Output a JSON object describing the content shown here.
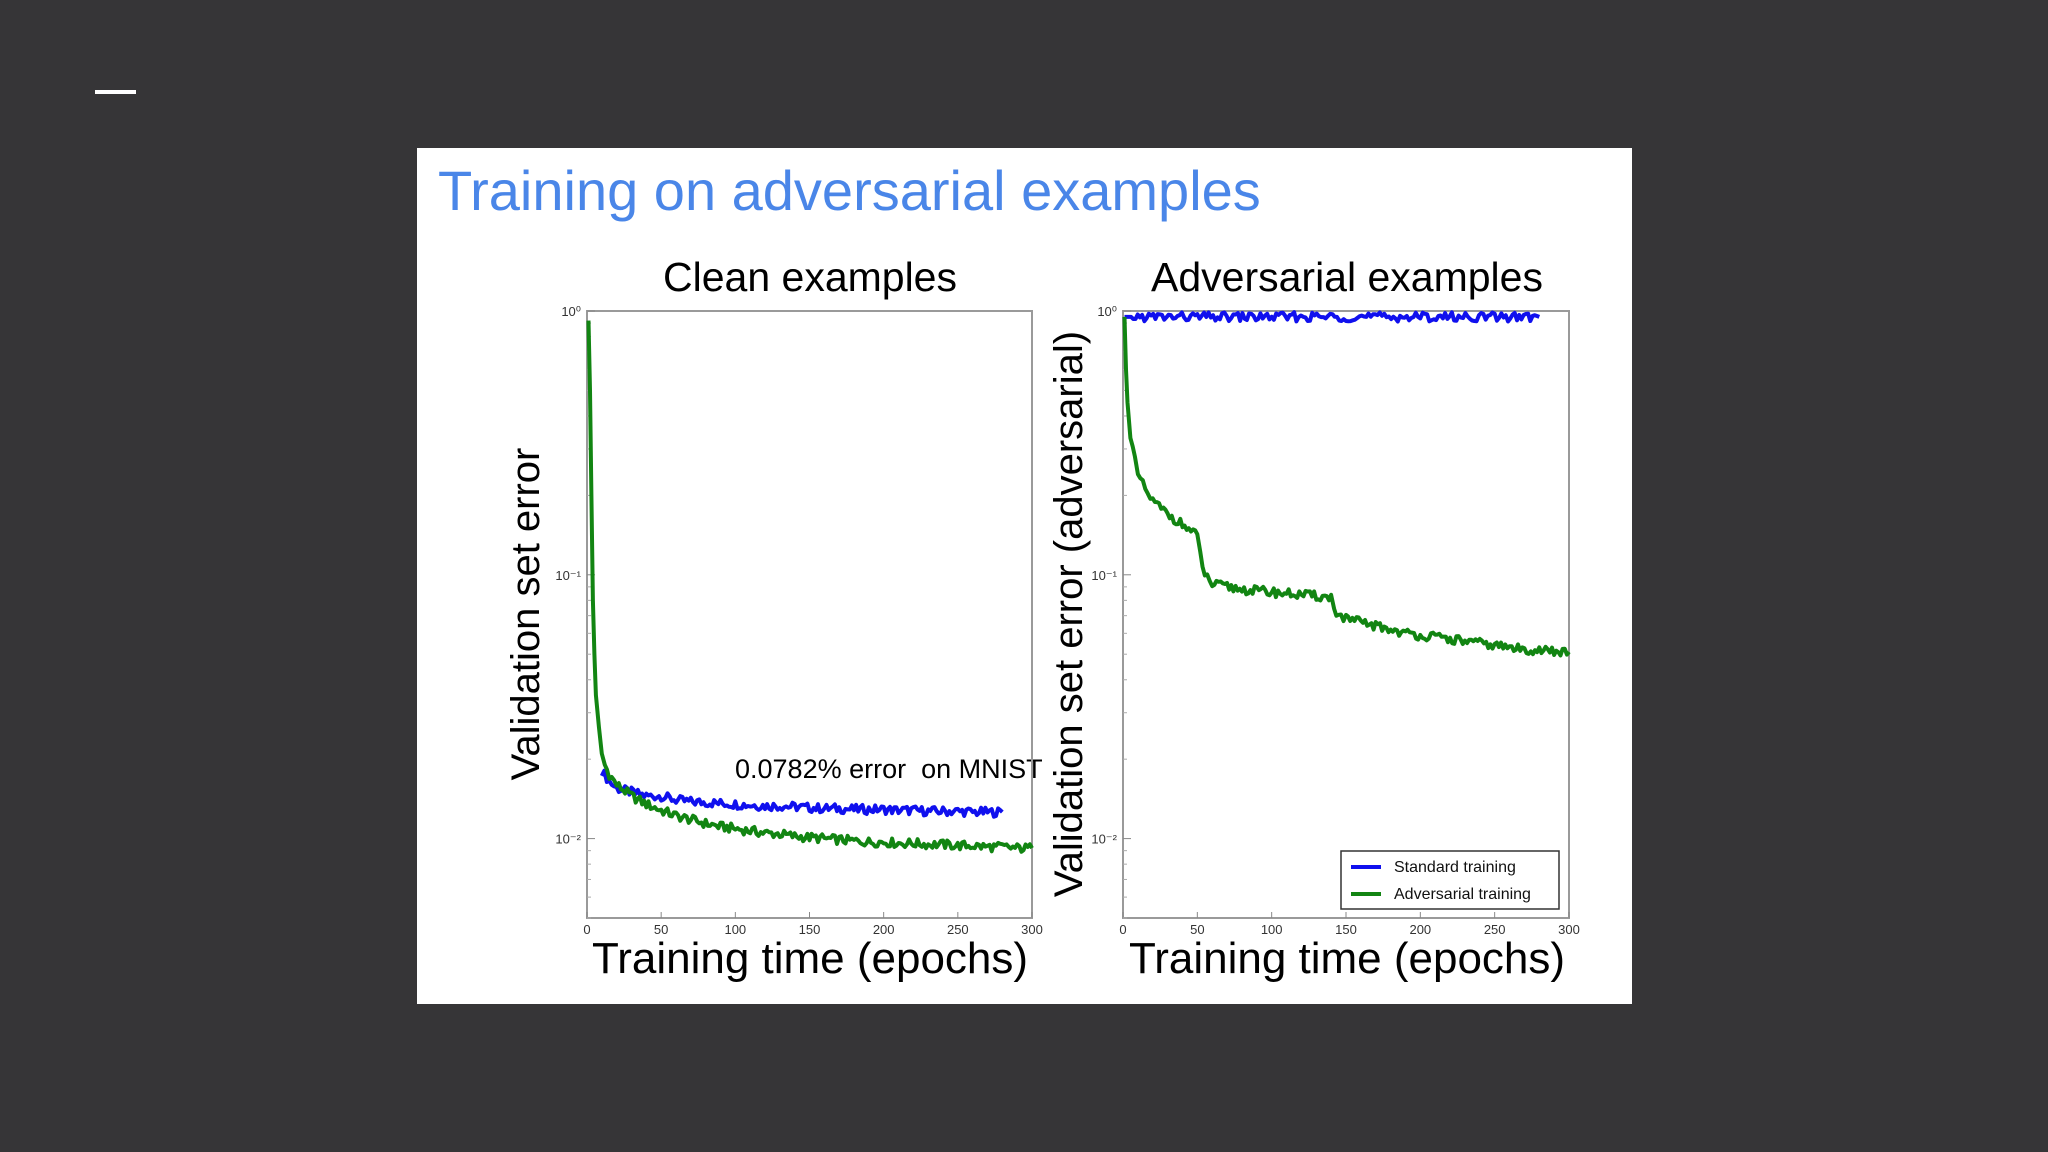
{
  "slide": {
    "title": "Training on adversarial examples",
    "annotation": "0.0782% error  on MNIST"
  },
  "colors": {
    "background": "#363537",
    "panel": "#ffffff",
    "title": "#4a86e8",
    "standard_training": "#1010ee",
    "adversarial_training": "#128512"
  },
  "chart_data": [
    {
      "type": "line",
      "title": "Clean examples",
      "xlabel": "Training time (epochs)",
      "ylabel": "Validation set error",
      "xscale": "linear",
      "yscale": "log",
      "xlim": [
        0,
        300
      ],
      "ylim": [
        0.005,
        1.0
      ],
      "xticks": [
        0,
        50,
        100,
        150,
        200,
        250,
        300
      ],
      "xtick_labels": [
        "0",
        "50",
        "100",
        "150",
        "200",
        "250",
        "300"
      ],
      "yticks": [
        1,
        0.1,
        0.01
      ],
      "ytick_labels": [
        "10⁰",
        "10⁻¹",
        "10⁻²"
      ],
      "grid": false,
      "series": [
        {
          "name": "Standard training",
          "x": [
            10,
            15,
            20,
            30,
            40,
            50,
            60,
            70,
            80,
            90,
            100,
            110,
            120,
            130,
            140,
            150,
            160,
            170,
            180,
            190,
            200,
            210,
            220,
            230,
            240,
            250,
            260,
            270,
            280
          ],
          "y": [
            0.018,
            0.0165,
            0.0155,
            0.015,
            0.0145,
            0.0145,
            0.014,
            0.0138,
            0.0137,
            0.0136,
            0.0135,
            0.0134,
            0.0133,
            0.0133,
            0.0132,
            0.0131,
            0.013,
            0.013,
            0.0129,
            0.0129,
            0.0129,
            0.0128,
            0.0128,
            0.0127,
            0.0127,
            0.0127,
            0.0126,
            0.0126,
            0.0126
          ]
        },
        {
          "name": "Adversarial training",
          "x": [
            1,
            2,
            3,
            4,
            5,
            6,
            8,
            10,
            12,
            15,
            20,
            30,
            40,
            50,
            60,
            70,
            80,
            90,
            100,
            110,
            120,
            130,
            140,
            150,
            160,
            170,
            180,
            190,
            200,
            210,
            220,
            230,
            240,
            250,
            260,
            270,
            280,
            290,
            300
          ],
          "y": [
            0.92,
            0.5,
            0.2,
            0.08,
            0.05,
            0.035,
            0.026,
            0.021,
            0.019,
            0.0175,
            0.016,
            0.0145,
            0.0135,
            0.0128,
            0.0122,
            0.0118,
            0.0114,
            0.0111,
            0.0109,
            0.0107,
            0.0105,
            0.0104,
            0.0102,
            0.0101,
            0.01,
            0.0099,
            0.0098,
            0.0097,
            0.0097,
            0.0096,
            0.0096,
            0.0095,
            0.0095,
            0.0094,
            0.0094,
            0.0093,
            0.0093,
            0.0092,
            0.0092
          ]
        }
      ]
    },
    {
      "type": "line",
      "title": "Adversarial examples",
      "xlabel": "Training time (epochs)",
      "ylabel": "Validation set error (adversarial)",
      "xscale": "linear",
      "yscale": "log",
      "xlim": [
        0,
        300
      ],
      "ylim": [
        0.005,
        1.0
      ],
      "xticks": [
        0,
        50,
        100,
        150,
        200,
        250,
        300
      ],
      "xtick_labels": [
        "0",
        "50",
        "100",
        "150",
        "200",
        "250",
        "300"
      ],
      "yticks": [
        1,
        0.1,
        0.01
      ],
      "ytick_labels": [
        "10⁰",
        "10⁻¹",
        "10⁻²"
      ],
      "grid": false,
      "legend": {
        "placement": "lower-right",
        "entries": [
          "Standard training",
          "Adversarial training"
        ]
      },
      "series": [
        {
          "name": "Standard training",
          "x": [
            1,
            50,
            100,
            150,
            200,
            250,
            280
          ],
          "y": [
            0.95,
            0.95,
            0.95,
            0.95,
            0.95,
            0.95,
            0.95
          ]
        },
        {
          "name": "Adversarial training",
          "x": [
            1,
            2,
            3,
            5,
            8,
            10,
            15,
            20,
            30,
            40,
            50,
            52,
            55,
            60,
            70,
            80,
            90,
            100,
            110,
            120,
            130,
            140,
            142,
            145,
            150,
            160,
            170,
            180,
            190,
            200,
            210,
            220,
            230,
            240,
            250,
            260,
            270,
            280,
            290,
            300
          ],
          "y": [
            0.95,
            0.6,
            0.45,
            0.33,
            0.27,
            0.24,
            0.21,
            0.19,
            0.17,
            0.155,
            0.14,
            0.12,
            0.1,
            0.092,
            0.09,
            0.088,
            0.087,
            0.086,
            0.085,
            0.084,
            0.083,
            0.082,
            0.075,
            0.07,
            0.068,
            0.066,
            0.064,
            0.062,
            0.06,
            0.059,
            0.058,
            0.057,
            0.056,
            0.055,
            0.054,
            0.053,
            0.052,
            0.052,
            0.051,
            0.051
          ]
        }
      ]
    }
  ]
}
